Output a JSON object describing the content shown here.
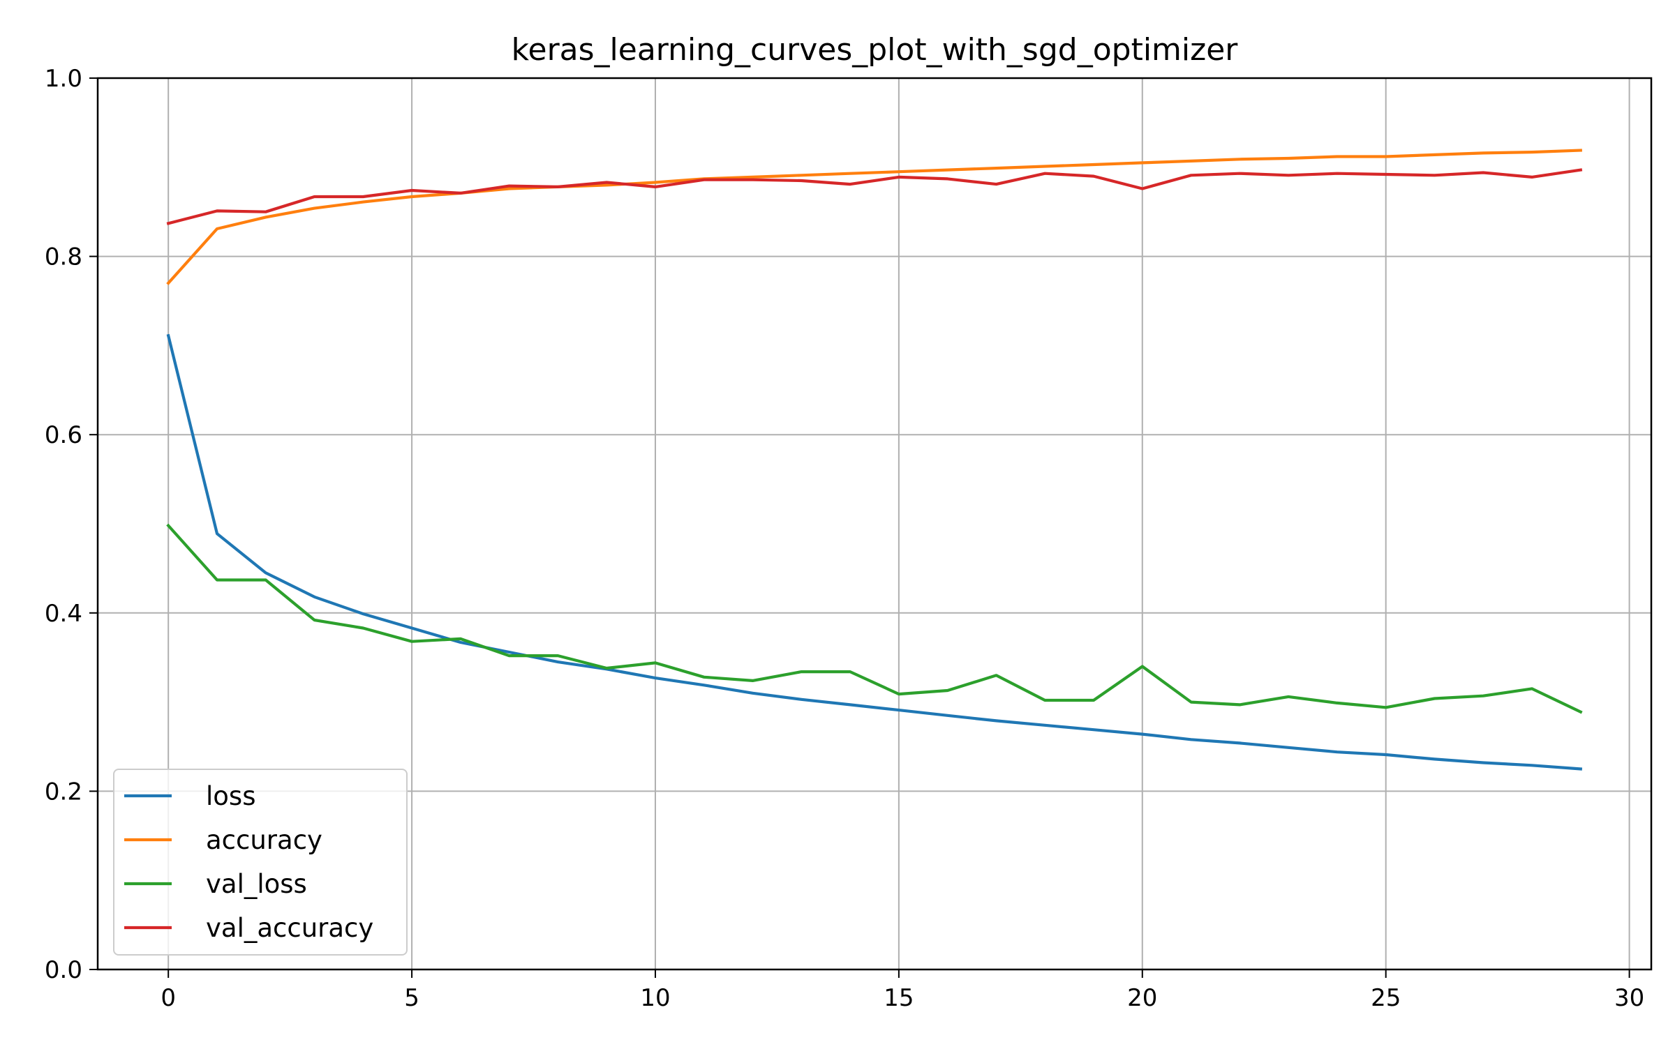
{
  "chart_data": {
    "type": "line",
    "title": "keras_learning_curves_plot_with_sgd_optimizer",
    "xlabel": "",
    "ylabel": "",
    "x": [
      0,
      1,
      2,
      3,
      4,
      5,
      6,
      7,
      8,
      9,
      10,
      11,
      12,
      13,
      14,
      15,
      16,
      17,
      18,
      19,
      20,
      21,
      22,
      23,
      24,
      25,
      26,
      27,
      28,
      29
    ],
    "xlim": [
      -1.45,
      30.45
    ],
    "ylim": [
      0.0,
      1.0
    ],
    "xticks": [
      0,
      5,
      10,
      15,
      20,
      25,
      30
    ],
    "yticks": [
      0.0,
      0.2,
      0.4,
      0.6,
      0.8,
      1.0
    ],
    "xtick_labels": [
      "0",
      "5",
      "10",
      "15",
      "20",
      "25",
      "30"
    ],
    "ytick_labels": [
      "0.0",
      "0.2",
      "0.4",
      "0.6",
      "0.8",
      "1.0"
    ],
    "grid": true,
    "legend_position": "lower-left",
    "series": [
      {
        "name": "loss",
        "color": "#1f77b4",
        "values": [
          0.711,
          0.489,
          0.445,
          0.418,
          0.399,
          0.383,
          0.367,
          0.356,
          0.345,
          0.337,
          0.327,
          0.319,
          0.31,
          0.303,
          0.297,
          0.291,
          0.285,
          0.279,
          0.274,
          0.269,
          0.264,
          0.258,
          0.254,
          0.249,
          0.244,
          0.241,
          0.236,
          0.232,
          0.229,
          0.225
        ]
      },
      {
        "name": "accuracy",
        "color": "#ff7f0e",
        "values": [
          0.77,
          0.831,
          0.844,
          0.854,
          0.861,
          0.867,
          0.871,
          0.876,
          0.878,
          0.88,
          0.883,
          0.887,
          0.889,
          0.891,
          0.893,
          0.895,
          0.897,
          0.899,
          0.901,
          0.903,
          0.905,
          0.907,
          0.909,
          0.91,
          0.912,
          0.912,
          0.914,
          0.916,
          0.917,
          0.919
        ]
      },
      {
        "name": "val_loss",
        "color": "#2ca02c",
        "values": [
          0.498,
          0.437,
          0.437,
          0.392,
          0.383,
          0.368,
          0.371,
          0.352,
          0.352,
          0.338,
          0.344,
          0.328,
          0.324,
          0.334,
          0.334,
          0.309,
          0.313,
          0.33,
          0.302,
          0.302,
          0.34,
          0.3,
          0.297,
          0.306,
          0.299,
          0.294,
          0.304,
          0.307,
          0.315,
          0.289
        ]
      },
      {
        "name": "val_accuracy",
        "color": "#d62728",
        "values": [
          0.837,
          0.851,
          0.85,
          0.867,
          0.867,
          0.874,
          0.871,
          0.879,
          0.878,
          0.883,
          0.878,
          0.886,
          0.886,
          0.885,
          0.881,
          0.889,
          0.887,
          0.881,
          0.893,
          0.89,
          0.876,
          0.891,
          0.893,
          0.891,
          0.893,
          0.892,
          0.891,
          0.894,
          0.889,
          0.897
        ]
      }
    ]
  }
}
